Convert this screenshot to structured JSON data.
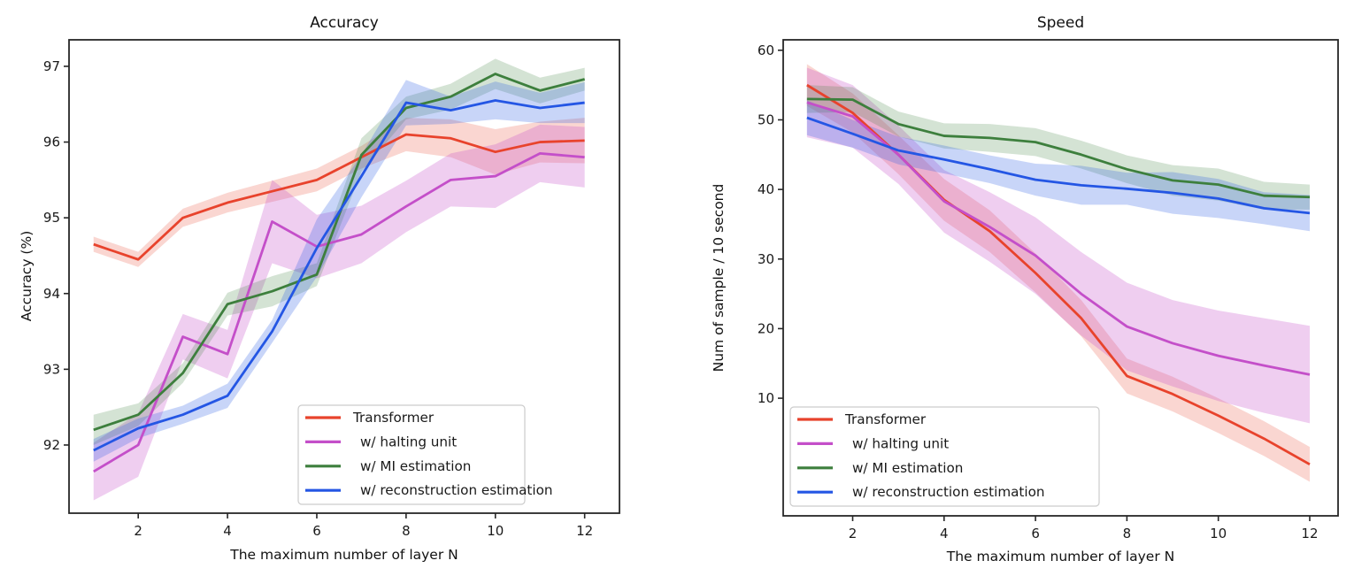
{
  "figure": {
    "background": "#ffffff"
  },
  "chart_data": [
    {
      "type": "line",
      "title": "Accuracy",
      "xlabel": "The maximum number of layer N",
      "ylabel": "Accuracy (%)",
      "x": [
        1,
        2,
        3,
        4,
        5,
        6,
        7,
        8,
        9,
        10,
        11,
        12
      ],
      "xticks": [
        2,
        4,
        6,
        8,
        10,
        12
      ],
      "yticks": [
        92,
        93,
        94,
        95,
        96,
        97
      ],
      "xlim": [
        0.45,
        12.78
      ],
      "ylim": [
        91.1,
        97.35
      ],
      "grid": false,
      "legend_position": "lower right",
      "series": [
        {
          "name": "Transformer",
          "color": "#e8432c",
          "band_alpha": 0.22,
          "values": [
            94.65,
            94.45,
            95.0,
            95.2,
            95.35,
            95.5,
            95.8,
            96.1,
            96.05,
            95.87,
            96.0,
            96.02
          ],
          "band": [
            0.1,
            0.1,
            0.12,
            0.13,
            0.14,
            0.15,
            0.15,
            0.22,
            0.25,
            0.3,
            0.27,
            0.3
          ]
        },
        {
          "name": " w/ halting unit",
          "color": "#c44fc9",
          "band_alpha": 0.28,
          "values": [
            91.65,
            92.0,
            93.43,
            93.2,
            94.95,
            94.62,
            94.78,
            95.15,
            95.5,
            95.55,
            95.85,
            95.8
          ],
          "band": [
            0.38,
            0.42,
            0.3,
            0.32,
            0.55,
            0.42,
            0.38,
            0.34,
            0.35,
            0.42,
            0.38,
            0.4
          ]
        },
        {
          "name": " w/ MI estimation",
          "color": "#3d7f3d",
          "band_alpha": 0.22,
          "values": [
            92.2,
            92.4,
            92.95,
            93.86,
            94.03,
            94.25,
            95.83,
            96.45,
            96.6,
            96.9,
            96.68,
            96.83
          ],
          "band": [
            0.2,
            0.15,
            0.13,
            0.15,
            0.2,
            0.15,
            0.22,
            0.15,
            0.17,
            0.2,
            0.17,
            0.15
          ]
        },
        {
          "name": " w/ reconstruction estimation",
          "color": "#2456e4",
          "band_alpha": 0.25,
          "values": [
            91.93,
            92.22,
            92.4,
            92.65,
            93.5,
            94.6,
            95.55,
            96.52,
            96.42,
            96.55,
            96.45,
            96.52
          ],
          "band": [
            0.15,
            0.13,
            0.12,
            0.16,
            0.15,
            0.38,
            0.28,
            0.3,
            0.18,
            0.25,
            0.2,
            0.27
          ]
        }
      ]
    },
    {
      "type": "line",
      "title": "Speed",
      "xlabel": "The maximum number of layer N",
      "ylabel": "Num of sample / 10 second",
      "x": [
        1,
        2,
        3,
        4,
        5,
        6,
        7,
        8,
        9,
        10,
        11,
        12
      ],
      "xticks": [
        2,
        4,
        6,
        8,
        10,
        12
      ],
      "yticks": [
        10,
        20,
        30,
        40,
        50,
        60
      ],
      "xlim": [
        0.48,
        12.62
      ],
      "ylim": [
        -6.9,
        61.5
      ],
      "grid": false,
      "legend_position": "lower left",
      "series": [
        {
          "name": "Transformer",
          "color": "#e8432c",
          "band_alpha": 0.22,
          "values": [
            55,
            51,
            45,
            38.5,
            34,
            28,
            21.5,
            13.2,
            10.6,
            7.5,
            4.2,
            0.5
          ],
          "band": [
            3,
            2.8,
            2.8,
            3,
            3,
            2.8,
            2.6,
            2.5,
            2.5,
            2.5,
            2.5,
            2.5
          ]
        },
        {
          "name": " w/ halting unit",
          "color": "#c44fc9",
          "band_alpha": 0.28,
          "values": [
            52.5,
            50.5,
            45,
            38.3,
            34.6,
            30.5,
            25,
            20.3,
            17.9,
            16.1,
            14.7,
            13.4
          ],
          "band": [
            5,
            4.5,
            4.2,
            4.5,
            5,
            5.5,
            6,
            6.3,
            6.2,
            6.5,
            6.8,
            7
          ]
        },
        {
          "name": " w/ MI estimation",
          "color": "#3d7f3d",
          "band_alpha": 0.22,
          "values": [
            53,
            52.9,
            49.4,
            47.7,
            47.4,
            46.8,
            45,
            42.9,
            41.3,
            40.7,
            39.1,
            38.9
          ],
          "band": [
            2,
            1.8,
            1.8,
            1.8,
            2,
            2,
            2,
            2,
            2.2,
            2.3,
            2,
            1.8
          ]
        },
        {
          "name": " w/ reconstruction estimation",
          "color": "#2456e4",
          "band_alpha": 0.25,
          "values": [
            50.3,
            48,
            45.6,
            44.3,
            42.9,
            41.4,
            40.6,
            40.1,
            39.5,
            38.7,
            37.3,
            36.6
          ],
          "band": [
            2.5,
            2,
            2,
            2,
            2,
            2.3,
            2.8,
            2.3,
            3,
            2.8,
            2.3,
            2.6
          ]
        }
      ]
    }
  ]
}
